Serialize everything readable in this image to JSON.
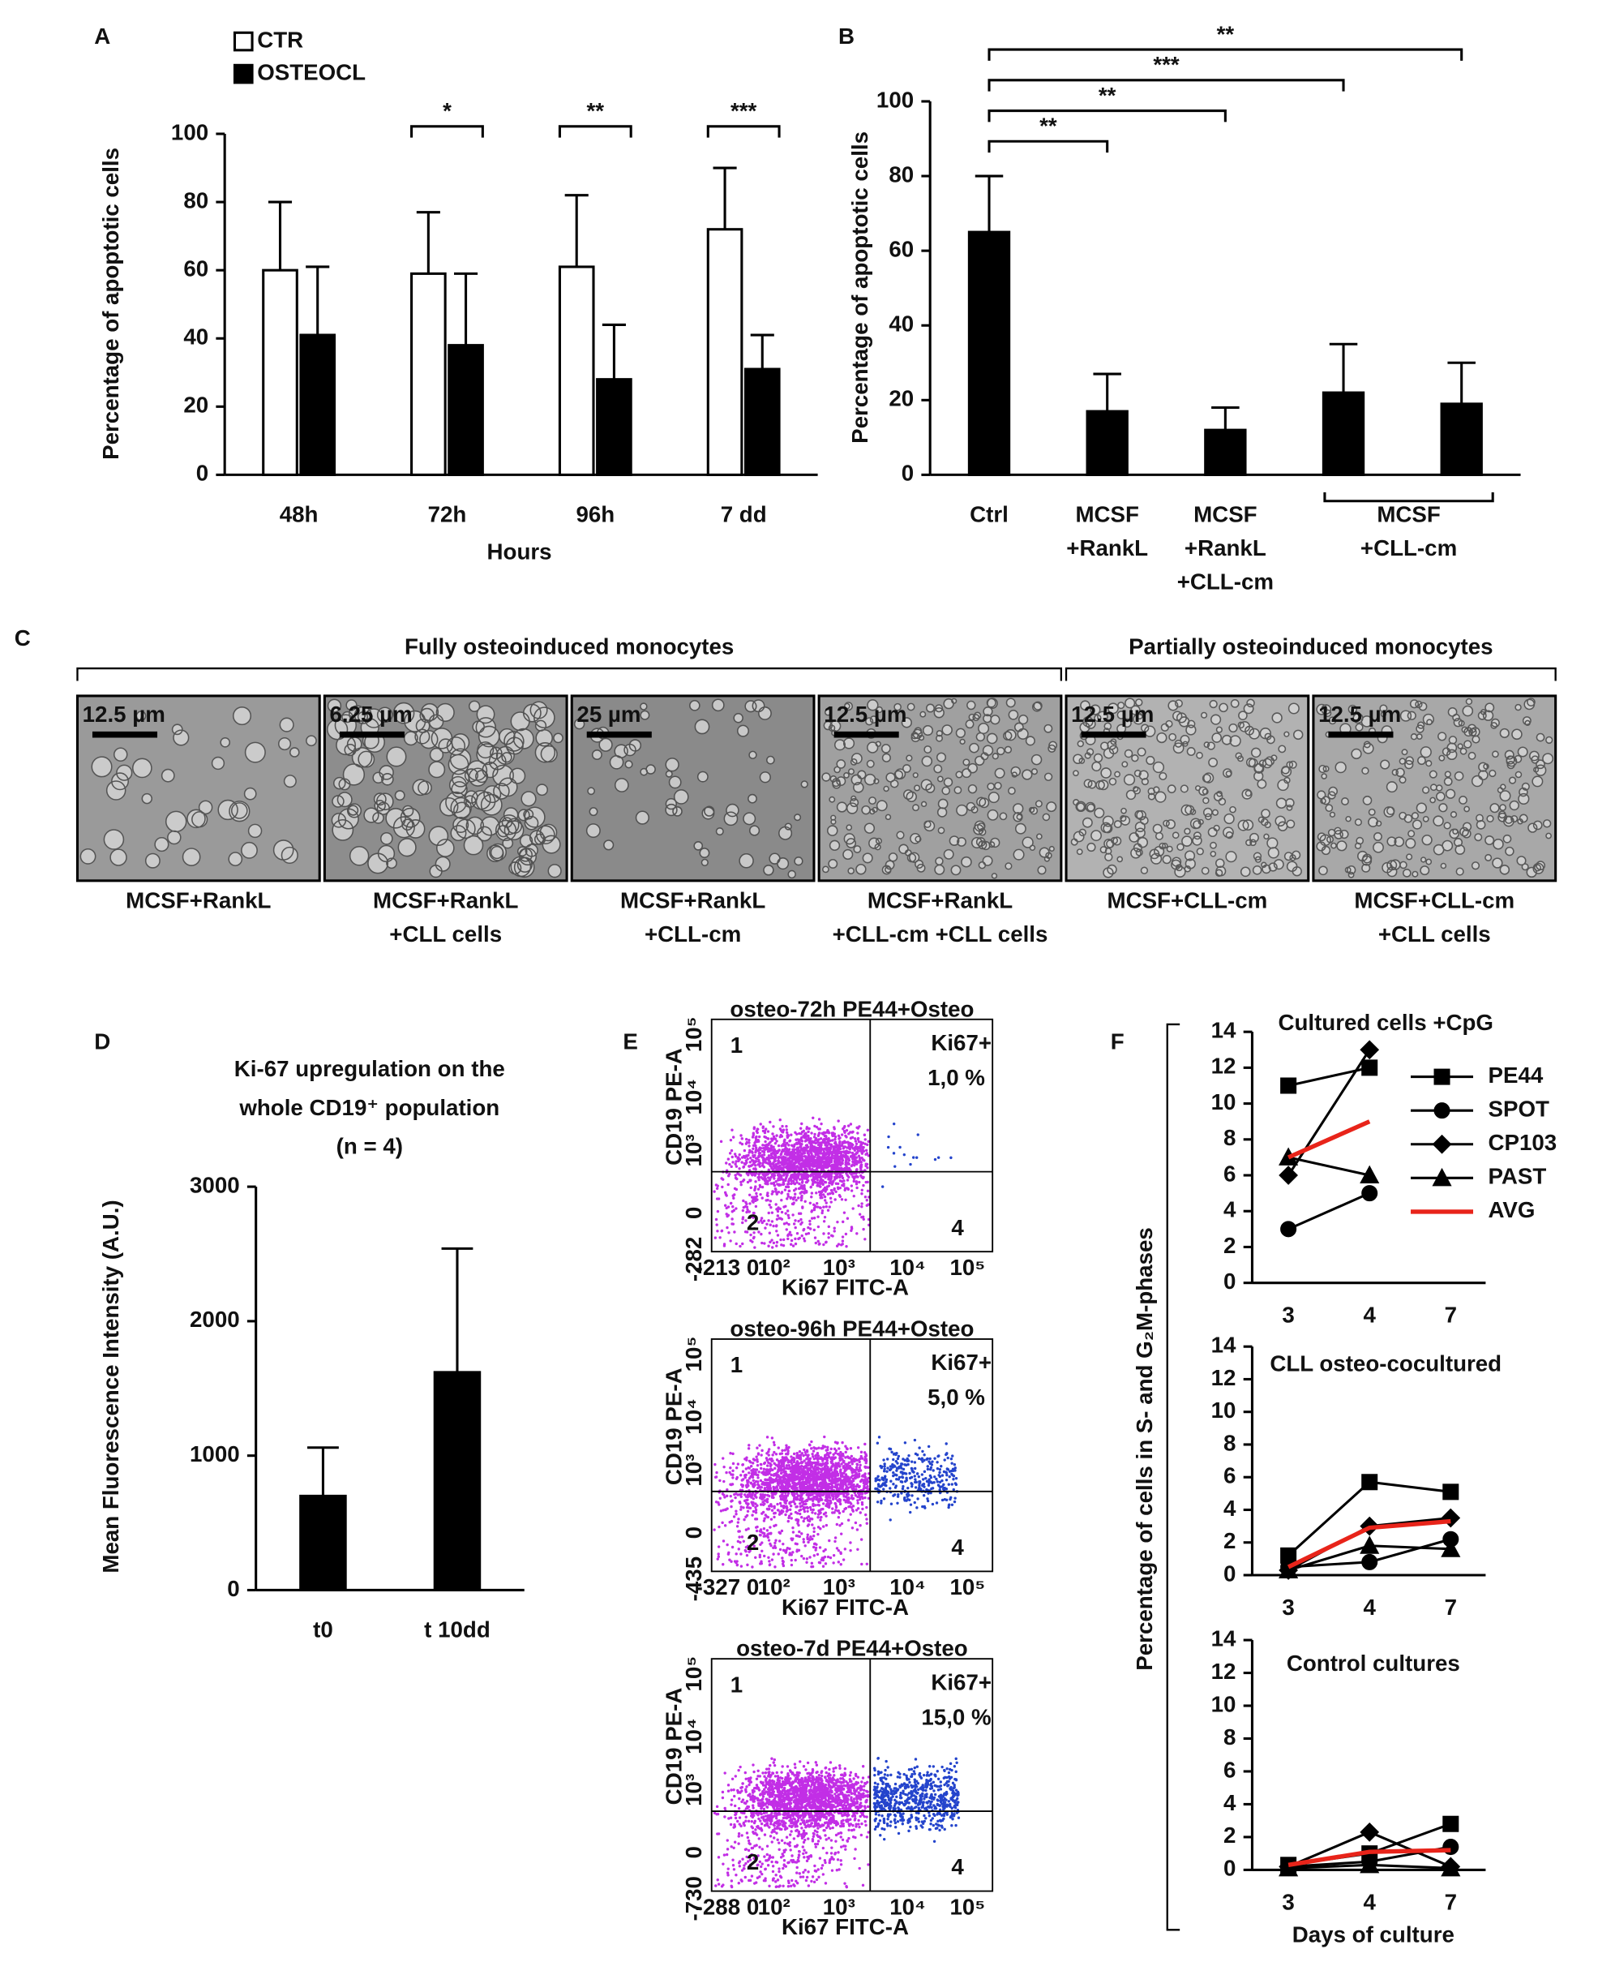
{
  "chart_data": [
    {
      "type": "bar",
      "panel": "A",
      "categories": [
        "48h",
        "72h",
        "96h",
        "7 dd"
      ],
      "series": [
        {
          "name": "CTR",
          "color": "#ffffff",
          "values": [
            60,
            59,
            61,
            72
          ],
          "errors": [
            20,
            18,
            21,
            18
          ]
        },
        {
          "name": "OSTEOCL",
          "color": "#000000",
          "values": [
            41,
            38,
            28,
            31
          ],
          "errors": [
            20,
            21,
            16,
            10
          ]
        }
      ],
      "significance": [
        null,
        "*",
        "**",
        "***"
      ],
      "legend": "top-left",
      "xlabel": "Hours",
      "ylabel": "Percentage of apoptotic cells",
      "ylim": [
        0,
        100
      ],
      "yticks": [
        0,
        20,
        40,
        60,
        80,
        100
      ]
    },
    {
      "type": "bar",
      "panel": "B",
      "categories": [
        [
          "Ctrl"
        ],
        [
          "MCSF",
          "+RankL"
        ],
        [
          "MCSF",
          "+RankL",
          "+CLL-cm"
        ],
        null,
        null
      ],
      "group_label": [
        "MCSF",
        "+CLL-cm"
      ],
      "color": "#000000",
      "values": [
        65,
        17,
        12,
        22,
        19
      ],
      "errors": [
        15,
        10,
        6,
        13,
        11
      ],
      "significance": [
        null,
        "**",
        "**",
        "***",
        "**"
      ],
      "ylabel": "Percentage of apoptotic cells",
      "ylim": [
        0,
        100
      ],
      "yticks": [
        0,
        20,
        40,
        60,
        80,
        100
      ]
    },
    {
      "type": "bar",
      "panel": "D",
      "title": [
        "Ki-67 upregulation on the",
        "whole CD19⁺ population",
        "(n = 4)"
      ],
      "categories": [
        "t0",
        "t 10dd"
      ],
      "color": "#000000",
      "values": [
        700,
        1620
      ],
      "errors": [
        360,
        920
      ],
      "ylabel": "Mean Fluorescence Intensity (A.U.)",
      "ylim": [
        0,
        3000
      ],
      "yticks": [
        0,
        1000,
        2000,
        3000
      ]
    },
    {
      "type": "line",
      "panel": "F",
      "title": "Cultured cells +CpG",
      "categories": [
        "3",
        "4",
        "7"
      ],
      "ylabel": "Percentage of cells in S- and G₂M-phases",
      "legend": "top-right",
      "series": [
        {
          "name": "PE44",
          "color": "#000000",
          "marker": "square",
          "values": [
            11,
            12,
            null
          ]
        },
        {
          "name": "SPOT",
          "color": "#000000",
          "marker": "circle",
          "values": [
            3,
            5,
            null
          ]
        },
        {
          "name": "CP103",
          "color": "#000000",
          "marker": "diamond",
          "values": [
            6,
            13,
            null
          ]
        },
        {
          "name": "PAST",
          "color": "#000000",
          "marker": "triangle",
          "values": [
            7,
            6,
            null
          ]
        },
        {
          "name": "AVG",
          "color": "#e8241a",
          "values": [
            7,
            9,
            null
          ]
        }
      ],
      "ylim": [
        0,
        14
      ],
      "yticks": [
        0,
        2,
        4,
        6,
        8,
        10,
        12,
        14
      ]
    },
    {
      "type": "line",
      "title": "CLL osteo-cocultured",
      "categories": [
        "3",
        "4",
        "7"
      ],
      "series": [
        {
          "color": "#000000",
          "marker": "square",
          "values": [
            1.2,
            5.7,
            5.1
          ]
        },
        {
          "color": "#000000",
          "marker": "circle",
          "values": [
            0.5,
            0.8,
            2.2
          ]
        },
        {
          "color": "#000000",
          "marker": "diamond",
          "values": [
            0.3,
            3,
            3.5
          ]
        },
        {
          "color": "#000000",
          "marker": "triangle",
          "values": [
            0.3,
            1.8,
            1.6
          ]
        },
        {
          "color": "#e8241a",
          "values": [
            0.5,
            2.9,
            3.3
          ]
        }
      ],
      "ylim": [
        0,
        14
      ],
      "yticks": [
        0,
        2,
        4,
        6,
        8,
        10,
        12,
        14
      ]
    },
    {
      "type": "line",
      "title": "Control cultures",
      "categories": [
        "3",
        "4",
        "7"
      ],
      "xlabel": "Days of culture",
      "series": [
        {
          "color": "#000000",
          "marker": "square",
          "values": [
            0.3,
            1,
            2.8
          ]
        },
        {
          "color": "#000000",
          "marker": "circle",
          "values": [
            0.2,
            0.5,
            1.4
          ]
        },
        {
          "color": "#000000",
          "marker": "diamond",
          "values": [
            0.2,
            2.3,
            0.2
          ]
        },
        {
          "color": "#000000",
          "marker": "triangle",
          "values": [
            0.1,
            0.3,
            0.1
          ]
        },
        {
          "color": "#e8241a",
          "values": [
            0.3,
            1.1,
            1.2
          ]
        }
      ],
      "ylim": [
        0,
        14
      ],
      "yticks": [
        0,
        2,
        4,
        6,
        8,
        10,
        12,
        14
      ]
    }
  ],
  "micrographs": {
    "panel": "C",
    "groups": [
      "Fully osteoinduced monocytes",
      "Partially osteoinduced monocytes"
    ],
    "images": [
      {
        "scale": "12.5 µm",
        "caption": [
          "MCSF+RankL"
        ]
      },
      {
        "scale": "6.25 µm",
        "caption": [
          "MCSF+RankL",
          "+CLL cells"
        ]
      },
      {
        "scale": "25 µm",
        "caption": [
          "MCSF+RankL",
          "+CLL-cm"
        ]
      },
      {
        "scale": "12.5 µm",
        "caption": [
          "MCSF+RankL",
          "+CLL-cm +CLL cells"
        ]
      },
      {
        "scale": "12.5 µm",
        "caption": [
          "MCSF+CLL-cm"
        ]
      },
      {
        "scale": "12.5 µm",
        "caption": [
          "MCSF+CLL-cm",
          "+CLL cells"
        ]
      }
    ]
  },
  "flow_plots": {
    "panel": "E",
    "ylabel": "CD19 PE-A",
    "xlabel": "Ki67 FITC-A",
    "quadrants": [
      "1",
      "2",
      "4"
    ],
    "plots": [
      {
        "title": "osteo-72h PE44+Osteo",
        "gate": "Ki67+",
        "percent": "1,0 %",
        "yticks": [
          "10⁵",
          "10⁴",
          "10³",
          "0",
          "-282"
        ],
        "xticks": [
          "-213",
          "0",
          "10²",
          "10³",
          "10⁴",
          "10⁵"
        ]
      },
      {
        "title": "osteo-96h PE44+Osteo",
        "gate": "Ki67+",
        "percent": "5,0 %",
        "yticks": [
          "10⁵",
          "10⁴",
          "10³",
          "0",
          "-435"
        ],
        "xticks": [
          "-327",
          "0",
          "10²",
          "10³",
          "10⁴",
          "10⁵"
        ]
      },
      {
        "title": "osteo-7d PE44+Osteo",
        "gate": "Ki67+",
        "percent": "15,0 %",
        "yticks": [
          "10⁵",
          "10⁴",
          "10³",
          "0",
          "-730"
        ],
        "xticks": [
          "-288",
          "0",
          "10²",
          "10³",
          "10⁴",
          "10⁵"
        ]
      }
    ]
  }
}
